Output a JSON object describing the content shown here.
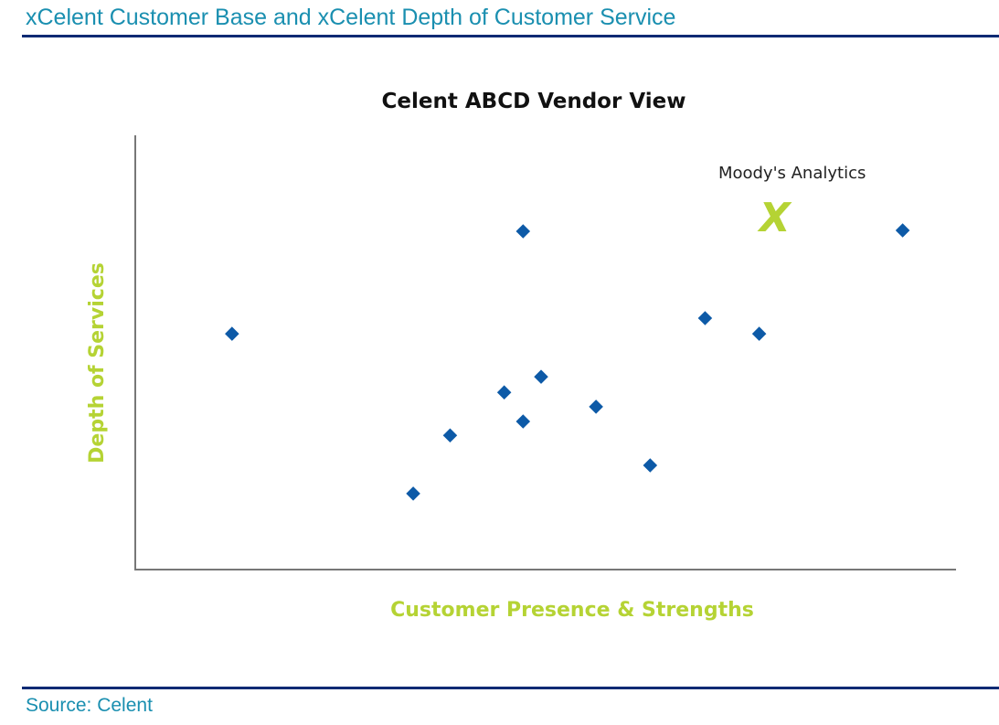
{
  "header": {
    "title": "xCelent Customer Base and xCelent Depth of Customer Service"
  },
  "footer": {
    "source": "Source: Celent"
  },
  "colors": {
    "accent": "#1a8fb0",
    "rule": "#0d2a73",
    "point": "#0d5aa7",
    "axis_label": "#b5d334"
  },
  "chart_data": {
    "type": "scatter",
    "title": "Celent ABCD Vendor View",
    "xlabel": "Customer Presence & Strengths",
    "ylabel": "Depth of Services",
    "xlim": [
      0,
      100
    ],
    "ylim": [
      0,
      100
    ],
    "grid": false,
    "points": [
      {
        "x": 11.8,
        "y": 54.3
      },
      {
        "x": 47.3,
        "y": 77.9
      },
      {
        "x": 93.6,
        "y": 78.1
      },
      {
        "x": 69.5,
        "y": 57.9
      },
      {
        "x": 76.1,
        "y": 54.3
      },
      {
        "x": 49.5,
        "y": 44.4
      },
      {
        "x": 45.0,
        "y": 40.8
      },
      {
        "x": 47.3,
        "y": 34.1
      },
      {
        "x": 56.2,
        "y": 37.5
      },
      {
        "x": 38.4,
        "y": 30.9
      },
      {
        "x": 62.8,
        "y": 24.0
      },
      {
        "x": 33.9,
        "y": 17.5
      }
    ],
    "highlight": {
      "label": "Moody's Analytics",
      "marker": "X",
      "x": 78.0,
      "y": 81.3
    }
  }
}
